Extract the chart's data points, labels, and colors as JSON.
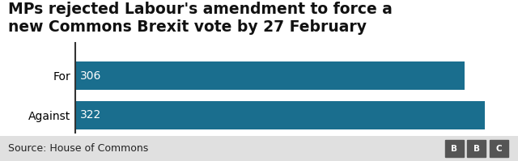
{
  "title_line1": "MPs rejected Labour's amendment to force a",
  "title_line2": "new Commons Brexit vote by 27 February",
  "categories": [
    "For",
    "Against"
  ],
  "values": [
    306,
    322
  ],
  "bar_color": "#1a6e8e",
  "bar_label_color": "#ffffff",
  "bar_label_fontsize": 10,
  "xlim": [
    0,
    340
  ],
  "source_text": "Source: House of Commons",
  "source_fontsize": 9,
  "title_fontsize": 13.5,
  "background_color": "#ffffff",
  "footer_background": "#e0e0e0",
  "ylabel_fontsize": 10,
  "spine_color": "#333333",
  "bbc_box_color": "#555555",
  "bbc_letters": [
    "B",
    "B",
    "C"
  ]
}
